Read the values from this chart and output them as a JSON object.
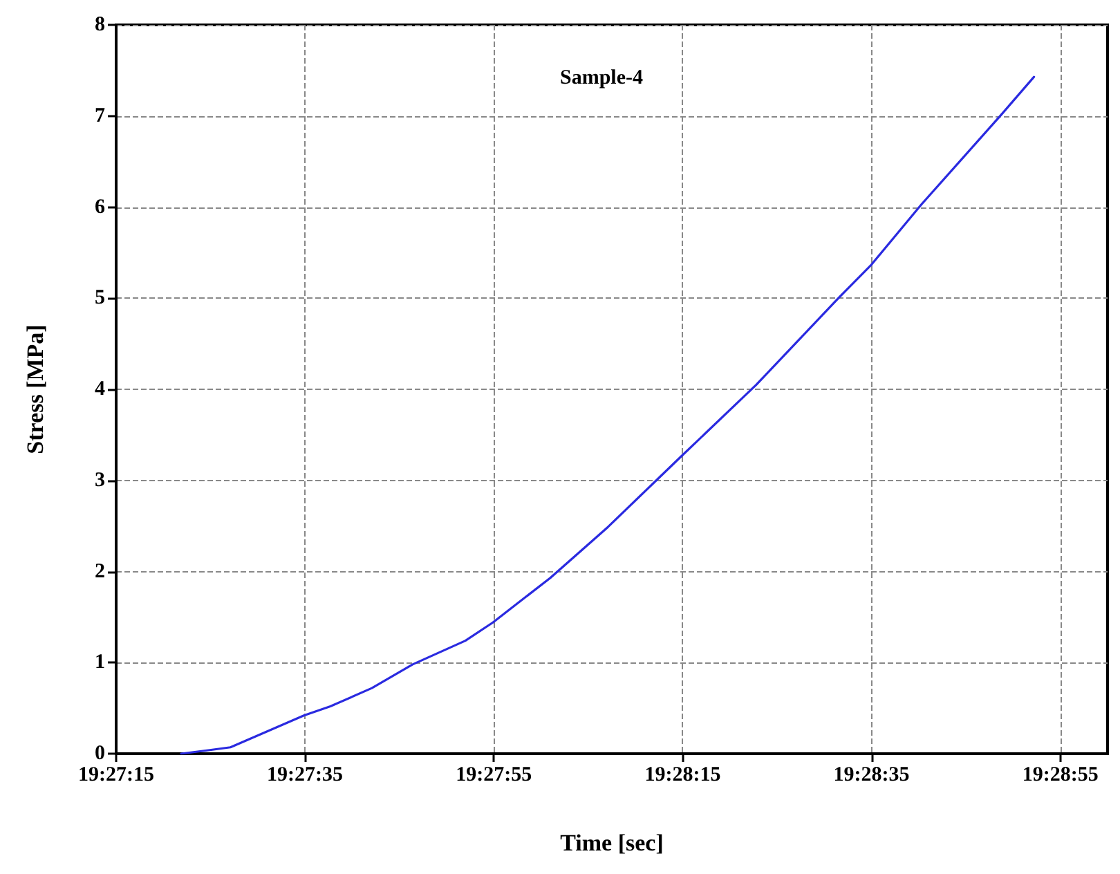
{
  "chart_data": {
    "type": "line",
    "title": "Sample-4",
    "xlabel": "Time [sec]",
    "ylabel": "Stress [MPa]",
    "x": [
      19.45608,
      19.45692,
      19.45753,
      19.45969,
      19.46047,
      19.46169,
      19.46289,
      19.46444,
      19.46525,
      19.46694,
      19.46864,
      19.47078,
      19.473,
      19.47544,
      19.47639,
      19.47786,
      19.48022,
      19.48117
    ],
    "series": [
      {
        "color": "#2a2ae0",
        "values": [
          0,
          0.04,
          0.07,
          0.42,
          0.52,
          0.72,
          0.98,
          1.24,
          1.44,
          1.93,
          2.49,
          3.26,
          4.05,
          5.01,
          5.37,
          6.03,
          7.02,
          7.43
        ]
      }
    ],
    "xlim": [
      19.454167,
      19.483333
    ],
    "xticks": [
      {
        "value": 19.454167,
        "label": "19:27:15"
      },
      {
        "value": 19.459722,
        "label": "19:27:35"
      },
      {
        "value": 19.465278,
        "label": "19:27:55"
      },
      {
        "value": 19.470833,
        "label": "19:28:15"
      },
      {
        "value": 19.476389,
        "label": "19:28:35"
      },
      {
        "value": 19.481944,
        "label": "19:28:55"
      }
    ],
    "ylim": [
      0,
      8
    ],
    "yticks": [
      0,
      1,
      2,
      3,
      4,
      5,
      6,
      7,
      8
    ],
    "grid": true,
    "marker": "none",
    "line_style": "solid"
  }
}
